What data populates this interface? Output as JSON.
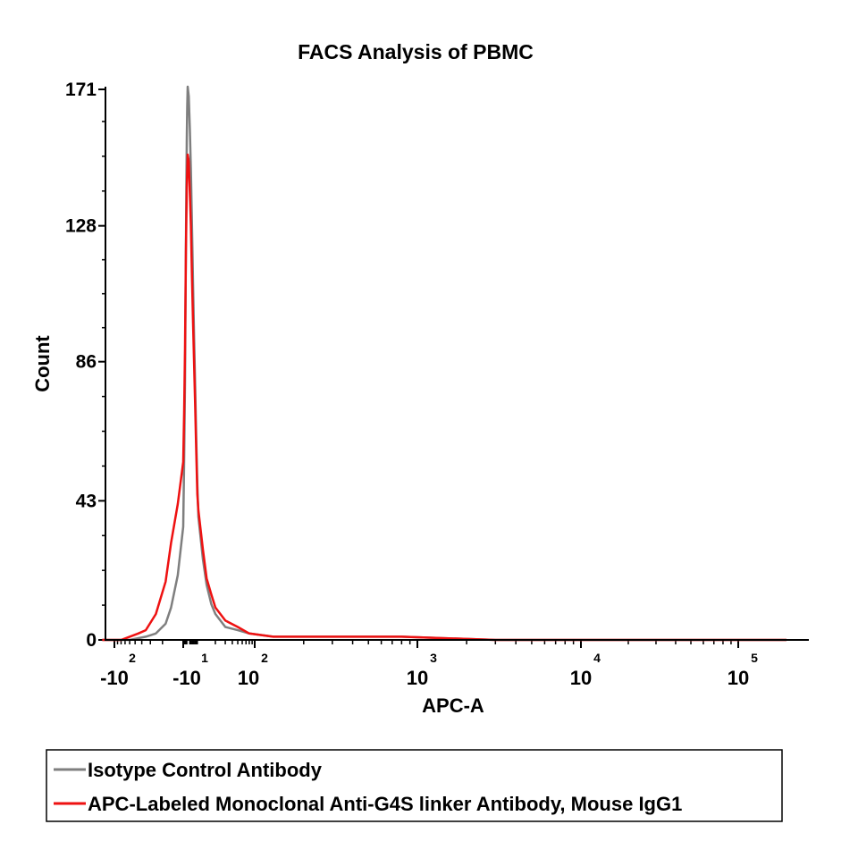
{
  "chart_data": {
    "type": "line",
    "title": "FACS Analysis of PBMC",
    "xlabel": "APC-A",
    "ylabel": "Count",
    "ylim": [
      0,
      171
    ],
    "y_ticks": [
      "0",
      "43",
      "86",
      "128",
      "171"
    ],
    "x_tick_labels": [
      {
        "base": "-10",
        "exp": "2",
        "value": -100
      },
      {
        "base": "-10",
        "exp": "1",
        "value": -10
      },
      {
        "base": "10",
        "exp": "2",
        "value": 100
      },
      {
        "base": "10",
        "exp": "3",
        "value": 1000
      },
      {
        "base": "10",
        "exp": "4",
        "value": 10000
      },
      {
        "base": "10",
        "exp": "5",
        "value": 100000
      }
    ],
    "x_scale": "biexponential",
    "legend_position": "bottom",
    "series": [
      {
        "name": "Isotype Control Antibody",
        "color": "#7f7f7f",
        "points": [
          [
            -150,
            0
          ],
          [
            -60,
            0
          ],
          [
            -35,
            1
          ],
          [
            -25,
            2
          ],
          [
            -18,
            5
          ],
          [
            -15,
            10
          ],
          [
            -12,
            20
          ],
          [
            -10,
            35
          ],
          [
            -8,
            55
          ],
          [
            -6,
            80
          ],
          [
            -5,
            100
          ],
          [
            -4,
            120
          ],
          [
            -3,
            140
          ],
          [
            -2,
            155
          ],
          [
            -1,
            165
          ],
          [
            0,
            171
          ],
          [
            1,
            168
          ],
          [
            2,
            158
          ],
          [
            3,
            145
          ],
          [
            4,
            128
          ],
          [
            5,
            110
          ],
          [
            6,
            93
          ],
          [
            7,
            78
          ],
          [
            8,
            62
          ],
          [
            9,
            48
          ],
          [
            10,
            38
          ],
          [
            12,
            25
          ],
          [
            14,
            17
          ],
          [
            17,
            11
          ],
          [
            20,
            8
          ],
          [
            30,
            4
          ],
          [
            50,
            3
          ],
          [
            80,
            2
          ],
          [
            130,
            1
          ],
          [
            300,
            1
          ],
          [
            800,
            1
          ],
          [
            3000,
            0
          ],
          [
            20000,
            0
          ],
          [
            200000,
            0
          ]
        ]
      },
      {
        "name": "APC-Labeled Monoclonal Anti-G4S linker Antibody, Mouse IgG1",
        "color": "#ee1111",
        "points": [
          [
            -150,
            0
          ],
          [
            -80,
            0
          ],
          [
            -60,
            1
          ],
          [
            -45,
            2
          ],
          [
            -35,
            3
          ],
          [
            -25,
            8
          ],
          [
            -18,
            18
          ],
          [
            -15,
            30
          ],
          [
            -12,
            42
          ],
          [
            -10,
            55
          ],
          [
            -8,
            70
          ],
          [
            -6,
            90
          ],
          [
            -5,
            105
          ],
          [
            -4,
            120
          ],
          [
            -3,
            130
          ],
          [
            -2,
            140
          ],
          [
            -1,
            145
          ],
          [
            0,
            150
          ],
          [
            1,
            148
          ],
          [
            2,
            138
          ],
          [
            3,
            128
          ],
          [
            4,
            112
          ],
          [
            5,
            98
          ],
          [
            6,
            85
          ],
          [
            7,
            72
          ],
          [
            8,
            58
          ],
          [
            9,
            45
          ],
          [
            10,
            40
          ],
          [
            12,
            28
          ],
          [
            14,
            19
          ],
          [
            17,
            14
          ],
          [
            20,
            10
          ],
          [
            30,
            6
          ],
          [
            50,
            4
          ],
          [
            80,
            2
          ],
          [
            130,
            1
          ],
          [
            300,
            1
          ],
          [
            800,
            1
          ],
          [
            3000,
            0
          ],
          [
            20000,
            0
          ],
          [
            200000,
            0
          ]
        ]
      }
    ]
  }
}
